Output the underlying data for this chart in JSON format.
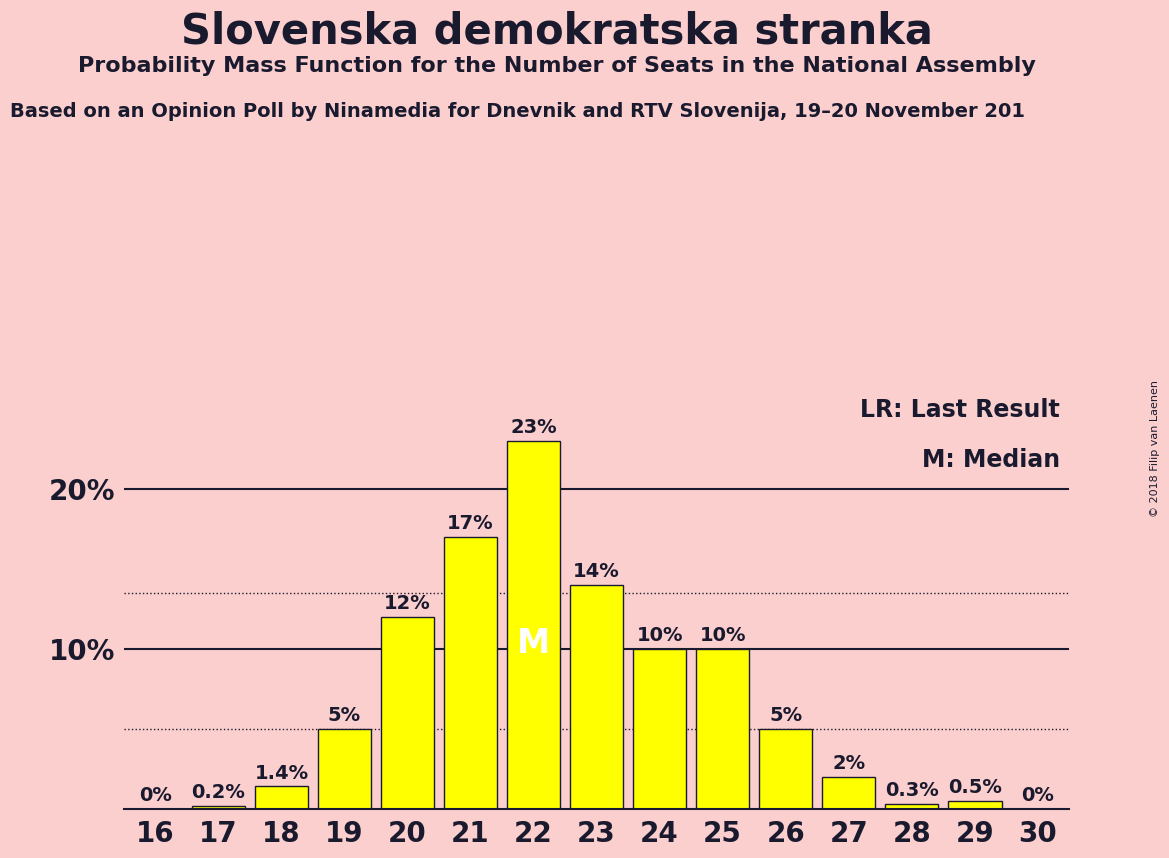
{
  "title": "Slovenska demokratska stranka",
  "subtitle": "Probability Mass Function for the Number of Seats in the National Assembly",
  "source_line": "Based on an Opinion Poll by Ninamedia for Dnevnik and RTV Slovenija, 19–20 November 201",
  "copyright": "© 2018 Filip van Laenen",
  "background_color": "#fccfcf",
  "bar_color": "#ffff00",
  "bar_edge_color": "#1a1a2e",
  "categories": [
    16,
    17,
    18,
    19,
    20,
    21,
    22,
    23,
    24,
    25,
    26,
    27,
    28,
    29,
    30
  ],
  "values": [
    0.0,
    0.2,
    1.4,
    5.0,
    12.0,
    17.0,
    23.0,
    14.0,
    10.0,
    10.0,
    5.0,
    2.0,
    0.3,
    0.5,
    0.0
  ],
  "labels": [
    "0%",
    "0.2%",
    "1.4%",
    "5%",
    "12%",
    "17%",
    "23%",
    "14%",
    "10%",
    "10%",
    "5%",
    "2%",
    "0.3%",
    "0.5%",
    "0%"
  ],
  "median_bar": 22,
  "last_result_bar": 25,
  "legend_lr": "LR: Last Result",
  "legend_m": "M: Median",
  "ylim": [
    0,
    26
  ],
  "dotted_lines": [
    5.0,
    13.5
  ],
  "solid_lines": [
    10.0,
    20.0
  ],
  "title_fontsize": 30,
  "subtitle_fontsize": 16,
  "source_fontsize": 14,
  "bar_label_fontsize": 14,
  "axis_label_fontsize": 20,
  "legend_fontsize": 17,
  "text_color": "#1a1a2e",
  "median_label_color": "#ffffff",
  "lr_label_color": "#ffff00"
}
